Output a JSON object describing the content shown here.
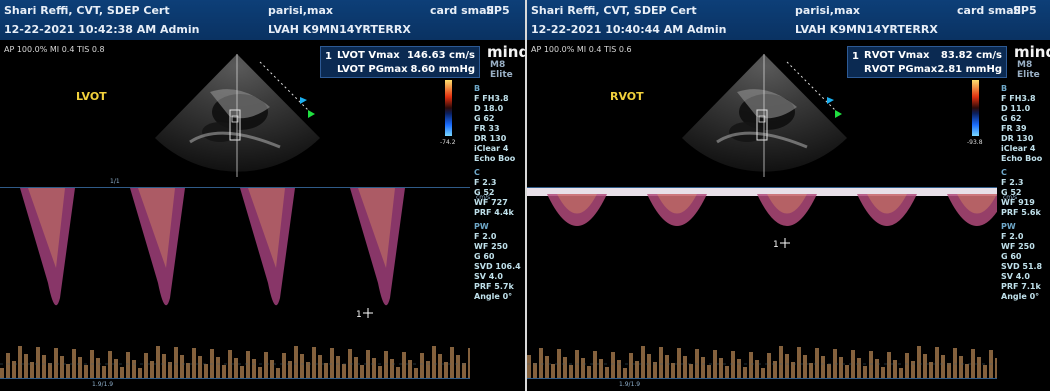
{
  "panels": [
    {
      "operator": "Shari Reffi, CVT, SDEP Cert",
      "datetime": "12-22-2021 10:42:38 AM Admin",
      "patient": "parisi,max",
      "patient_id": "LVAH K9MN14YRTERRX",
      "preset": "card small",
      "side_fragment": "SP5",
      "info_line": "AP 100.0%  MI 0.4  TIS 0.8",
      "view_label": "LVOT",
      "measurement_index": "1",
      "measurements": [
        {
          "label": "LVOT Vmax",
          "value": "146.63 cm/s"
        },
        {
          "label": "LVOT PGmax",
          "value": "8.60 mmHg"
        }
      ],
      "brand": "mindr",
      "model": "M8 Elite",
      "colorbar_top": "",
      "colorbar_bottom": "-74.2",
      "scale_top": "1/1",
      "scale_bottom": "1.9/1.9",
      "velocity_unit": "cm/s",
      "sidebar": [
        {
          "section": "B",
          "lines": [
            "F FH3.8",
            "D 18.0",
            "G 62",
            "FR 33",
            "DR 130",
            "iClear 4",
            "Echo Boo"
          ]
        },
        {
          "section": "C",
          "lines": [
            "F 2.3",
            "G 52",
            "WF 727",
            "PRF 4.4k"
          ]
        },
        {
          "section": "PW",
          "lines": [
            "F 2.0",
            "WF 250",
            "G 60",
            "SVD 106.4",
            "SV 4.0",
            "PRF 5.7k",
            "Angle 0°"
          ]
        }
      ],
      "cursor_label": "1",
      "accent_color": "#f2d13c"
    },
    {
      "operator": "Shari Reffi, CVT, SDEP Cert",
      "datetime": "12-22-2021 10:40:44 AM Admin",
      "patient": "parisi,max",
      "patient_id": "LVAH K9MN14YRTERRX",
      "preset": "card small",
      "side_fragment": "SP5",
      "info_line": "AP 100.0%  MI 0.4  TIS 0.6",
      "view_label": "RVOT",
      "measurement_index": "1",
      "measurements": [
        {
          "label": "RVOT Vmax",
          "value": "83.82 cm/s"
        },
        {
          "label": "RVOT PGmax",
          "value": "2.81 mmHg"
        }
      ],
      "brand": "mindr",
      "model": "M8 Elite",
      "colorbar_top": "",
      "colorbar_bottom": "-93.8",
      "scale_top": "",
      "scale_bottom": "1.9/1.9",
      "velocity_unit": "cm/s",
      "sidebar": [
        {
          "section": "B",
          "lines": [
            "F FH3.8",
            "D 11.0",
            "G 62",
            "FR 39",
            "DR 130",
            "iClear 4",
            "Echo Boo"
          ]
        },
        {
          "section": "C",
          "lines": [
            "F 2.3",
            "G 52",
            "WF 919",
            "PRF 5.6k"
          ]
        },
        {
          "section": "PW",
          "lines": [
            "F 2.0",
            "WF 250",
            "G 60",
            "SVD 51.8",
            "SV 4.0",
            "PRF 7.1k",
            "Angle 0°"
          ]
        }
      ],
      "cursor_label": "1",
      "accent_color": "#f2d13c"
    }
  ]
}
